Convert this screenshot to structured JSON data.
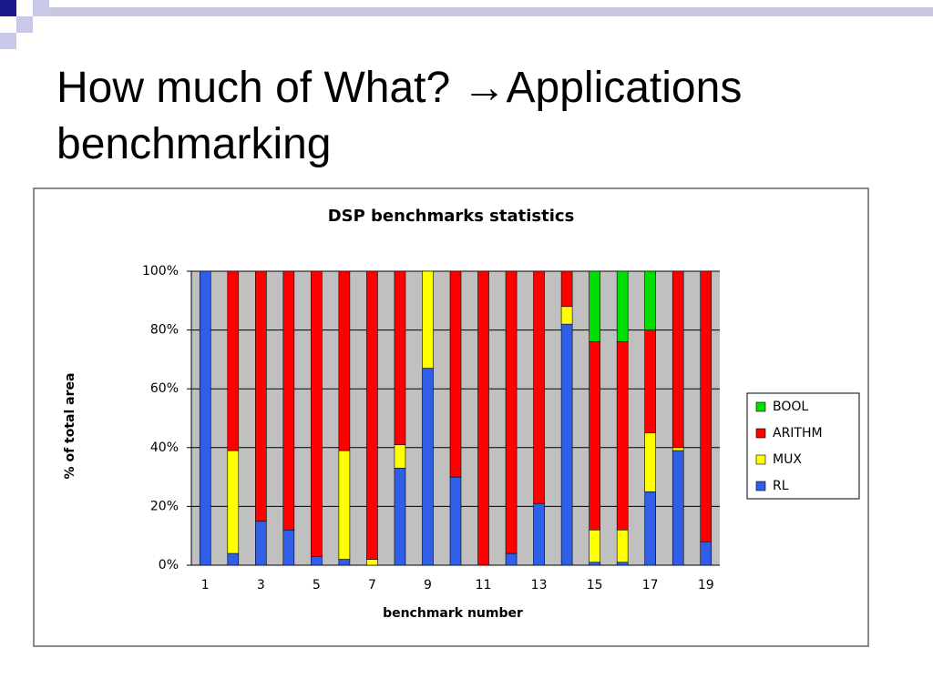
{
  "slide_title": [
    "How much of What? →Applications",
    "benchmarking"
  ],
  "chart_data": {
    "type": "stacked_bar",
    "title": "DSP benchmarks statistics",
    "y_label": "% of total area",
    "x_label": "benchmark number",
    "categories": [
      "1",
      null,
      "3",
      null,
      "5",
      null,
      "7",
      null,
      "9",
      null,
      "11",
      null,
      "13",
      null,
      "15",
      null,
      "17",
      null,
      "19"
    ],
    "series": [
      {
        "name": "RL",
        "color": "#2f5fe8",
        "values": [
          100,
          4,
          15,
          12,
          3,
          2,
          0,
          33,
          67,
          30,
          0,
          4,
          21,
          82,
          1,
          1,
          25,
          39,
          8
        ]
      },
      {
        "name": "MUX",
        "color": "#ffff00",
        "values": [
          0,
          35,
          0,
          0,
          0,
          37,
          2,
          8,
          33,
          0,
          0,
          0,
          0,
          6,
          11,
          11,
          20,
          1,
          0
        ]
      },
      {
        "name": "ARITHM",
        "color": "#ff0000",
        "values": [
          0,
          61,
          85,
          88,
          97,
          61,
          98,
          59,
          0,
          70,
          100,
          96,
          79,
          12,
          64,
          64,
          35,
          60,
          92
        ]
      },
      {
        "name": "BOOL",
        "color": "#00dd00",
        "values": [
          0,
          0,
          0,
          0,
          0,
          0,
          0,
          0,
          0,
          0,
          0,
          0,
          0,
          0,
          24,
          24,
          20,
          0,
          0
        ]
      }
    ],
    "ylim": [
      0,
      100
    ],
    "yticks": [
      {
        "value": 0,
        "label": "0%"
      },
      {
        "value": 20,
        "label": "20%"
      },
      {
        "value": 40,
        "label": "40%"
      },
      {
        "value": 60,
        "label": "60%"
      },
      {
        "value": 80,
        "label": "80%"
      },
      {
        "value": 100,
        "label": "100%"
      }
    ],
    "grid": true,
    "legend": "right"
  }
}
